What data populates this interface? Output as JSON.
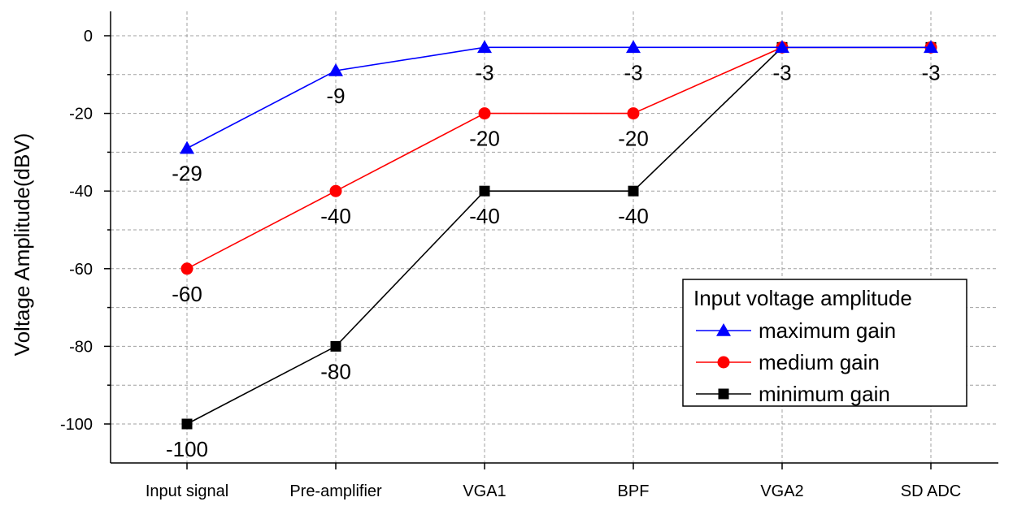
{
  "chart_data": {
    "type": "line",
    "title": "",
    "xlabel": "",
    "ylabel": "Voltage Amplitude(dBV)",
    "categories": [
      "Input signal",
      "Pre-amplifier",
      "VGA1",
      "BPF",
      "VGA2",
      "SD ADC"
    ],
    "ylim": [
      -110,
      3
    ],
    "yticks": [
      0,
      -20,
      -40,
      -60,
      -80,
      -100
    ],
    "ytick_labels": [
      "0",
      "-20",
      "-40",
      "-60",
      "-80",
      "-100"
    ],
    "grid": true,
    "legend": {
      "title": "Input voltage amplitude",
      "placement": "bottom-right"
    },
    "series": [
      {
        "name": "maximum gain",
        "color": "#0000ff",
        "marker": "triangle",
        "values": [
          -29,
          -9,
          -3,
          -3,
          -3,
          -3
        ],
        "labels": [
          "-29",
          "-9",
          "-3",
          "-3",
          "-3",
          "-3"
        ]
      },
      {
        "name": "medium gain",
        "color": "#ff0000",
        "marker": "circle",
        "values": [
          -60,
          -40,
          -20,
          -20,
          -3,
          -3
        ],
        "labels": [
          "-60",
          "-40",
          "-20",
          "-20",
          "",
          ""
        ]
      },
      {
        "name": "minimum gain",
        "color": "#000000",
        "marker": "square",
        "values": [
          -100,
          -80,
          -40,
          -40,
          -3,
          -3
        ],
        "labels": [
          "-100",
          "-80",
          "-40",
          "-40",
          "",
          ""
        ]
      }
    ]
  }
}
